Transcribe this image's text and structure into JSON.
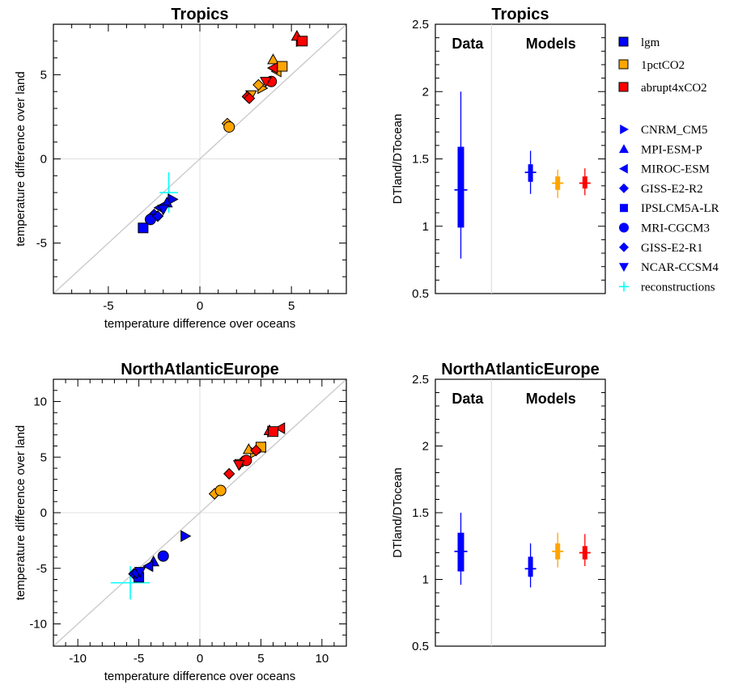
{
  "legend": {
    "experiments": [
      {
        "label": "lgm",
        "color": "#0000ff"
      },
      {
        "label": "1pctCO2",
        "color": "#ffa500"
      },
      {
        "label": "abrupt4xCO2",
        "color": "#ff0000"
      }
    ],
    "models": [
      {
        "label": "CNRM_CM5",
        "marker": "tri-right"
      },
      {
        "label": "MPI-ESM-P",
        "marker": "tri-up"
      },
      {
        "label": "MIROC-ESM",
        "marker": "tri-left"
      },
      {
        "label": "GISS-E2-R2",
        "marker": "diamond"
      },
      {
        "label": "IPSLCM5A-LR",
        "marker": "square"
      },
      {
        "label": "MRI-CGCM3",
        "marker": "circle"
      },
      {
        "label": "GISS-E2-R1",
        "marker": "diamond"
      },
      {
        "label": "NCAR-CCSM4",
        "marker": "tri-down"
      }
    ],
    "reconstructions": {
      "label": "reconstructions",
      "color": "#00ffff"
    }
  },
  "chart_data": [
    {
      "type": "scatter",
      "title": "Tropics",
      "xlabel": "temperature difference over oceans",
      "ylabel": "temperature difference over land",
      "xlim": [
        -8,
        8
      ],
      "ylim": [
        -8,
        8
      ],
      "xticks": [
        "-5",
        "0",
        "5"
      ],
      "yticks": [
        "-5",
        "0",
        "5"
      ],
      "reference_line": "1:1",
      "series": [
        {
          "name": "lgm",
          "color": "#0000ff",
          "points": [
            {
              "model": "CNRM_CM5",
              "x": -1.5,
              "y": -2.4
            },
            {
              "model": "MPI-ESM-P",
              "x": -1.8,
              "y": -2.6
            },
            {
              "model": "MIROC-ESM",
              "x": -2.2,
              "y": -2.9
            },
            {
              "model": "GISS-E2-R2",
              "x": -2.5,
              "y": -3.3
            },
            {
              "model": "IPSLCM5A-LR",
              "x": -3.1,
              "y": -4.1
            },
            {
              "model": "MRI-CGCM3",
              "x": -2.7,
              "y": -3.6
            },
            {
              "model": "GISS-E2-R1",
              "x": -2.3,
              "y": -3.4
            },
            {
              "model": "NCAR-CCSM4",
              "x": -2.0,
              "y": -3.0
            }
          ]
        },
        {
          "name": "1pctCO2",
          "color": "#ffa500",
          "points": [
            {
              "model": "CNRM_CM5",
              "x": 3.4,
              "y": 4.2
            },
            {
              "model": "MPI-ESM-P",
              "x": 4.0,
              "y": 5.9
            },
            {
              "model": "MIROC-ESM",
              "x": 4.2,
              "y": 5.2
            },
            {
              "model": "GISS-E2-R2",
              "x": 1.5,
              "y": 2.1
            },
            {
              "model": "IPSLCM5A-LR",
              "x": 4.5,
              "y": 5.5
            },
            {
              "model": "MRI-CGCM3",
              "x": 1.6,
              "y": 1.9
            },
            {
              "model": "GISS-E2-R1",
              "x": 3.2,
              "y": 4.4
            },
            {
              "model": "NCAR-CCSM4",
              "x": 2.8,
              "y": 3.8
            }
          ]
        },
        {
          "name": "abrupt4xCO2",
          "color": "#ff0000",
          "points": [
            {
              "model": "CNRM_CM5",
              "x": 5.5,
              "y": 7.0
            },
            {
              "model": "MPI-ESM-P",
              "x": 5.3,
              "y": 7.3
            },
            {
              "model": "MIROC-ESM",
              "x": 4.0,
              "y": 5.4
            },
            {
              "model": "GISS-E2-R2",
              "x": 2.6,
              "y": 3.7
            },
            {
              "model": "IPSLCM5A-LR",
              "x": 5.6,
              "y": 7.0
            },
            {
              "model": "MRI-CGCM3",
              "x": 3.9,
              "y": 4.6
            },
            {
              "model": "GISS-E2-R1",
              "x": 2.7,
              "y": 3.6
            },
            {
              "model": "NCAR-CCSM4",
              "x": 3.6,
              "y": 4.6
            }
          ]
        }
      ],
      "reconstructions": {
        "x": -1.7,
        "y": -2.0,
        "x_range": [
          -2.2,
          -1.2
        ],
        "y_range": [
          -3.2,
          -0.8
        ]
      }
    },
    {
      "type": "box",
      "title": "Tropics",
      "ylabel": "DTland/DTocean",
      "ylim": [
        0.5,
        2.5
      ],
      "yticks": [
        "0.5",
        "1",
        "1.5",
        "2",
        "2.5"
      ],
      "groups": [
        "Data",
        "Models"
      ],
      "boxes": [
        {
          "group": "Data",
          "color": "#0000ff",
          "whisker": [
            0.76,
            2.0
          ],
          "box": [
            0.99,
            1.59
          ],
          "median": 1.27
        },
        {
          "group": "Models",
          "series": "lgm",
          "color": "#0000ff",
          "whisker": [
            1.24,
            1.56
          ],
          "box": [
            1.33,
            1.46
          ],
          "median": 1.4
        },
        {
          "group": "Models",
          "series": "1pctCO2",
          "color": "#ffa500",
          "whisker": [
            1.21,
            1.42
          ],
          "box": [
            1.27,
            1.37
          ],
          "median": 1.32
        },
        {
          "group": "Models",
          "series": "abrupt4xCO2",
          "color": "#ff0000",
          "whisker": [
            1.23,
            1.43
          ],
          "box": [
            1.28,
            1.37
          ],
          "median": 1.32
        }
      ]
    },
    {
      "type": "scatter",
      "title": "NorthAtlanticEurope",
      "xlabel": "temperature difference over oceans",
      "ylabel": "temperature difference over land",
      "xlim": [
        -12,
        12
      ],
      "ylim": [
        -12,
        12
      ],
      "xticks": [
        "-10",
        "-5",
        "0",
        "5",
        "10"
      ],
      "yticks": [
        "-10",
        "-5",
        "0",
        "5",
        "10"
      ],
      "reference_line": "1:1",
      "series": [
        {
          "name": "lgm",
          "color": "#0000ff",
          "points": [
            {
              "model": "CNRM_CM5",
              "x": -1.2,
              "y": -2.1
            },
            {
              "model": "MPI-ESM-P",
              "x": -3.8,
              "y": -4.4
            },
            {
              "model": "MIROC-ESM",
              "x": -4.2,
              "y": -4.8
            },
            {
              "model": "GISS-E2-R2",
              "x": -5.4,
              "y": -5.5
            },
            {
              "model": "IPSLCM5A-LR",
              "x": -5.0,
              "y": -5.8
            },
            {
              "model": "MRI-CGCM3",
              "x": -3.0,
              "y": -3.9
            },
            {
              "model": "GISS-E2-R1",
              "x": -5.2,
              "y": -5.4
            },
            {
              "model": "NCAR-CCSM4",
              "x": -4.9,
              "y": -5.3
            }
          ]
        },
        {
          "name": "1pctCO2",
          "color": "#ffa500",
          "points": [
            {
              "model": "CNRM_CM5",
              "x": 4.5,
              "y": 5.4
            },
            {
              "model": "MPI-ESM-P",
              "x": 4.0,
              "y": 5.7
            },
            {
              "model": "MIROC-ESM",
              "x": 5.0,
              "y": 5.9
            },
            {
              "model": "GISS-E2-R2",
              "x": 1.2,
              "y": 1.7
            },
            {
              "model": "IPSLCM5A-LR",
              "x": 5.0,
              "y": 5.9
            },
            {
              "model": "MRI-CGCM3",
              "x": 1.7,
              "y": 2.0
            },
            {
              "model": "GISS-E2-R1",
              "x": 3.5,
              "y": 4.6
            },
            {
              "model": "NCAR-CCSM4",
              "x": 3.3,
              "y": 4.4
            }
          ]
        },
        {
          "name": "abrupt4xCO2",
          "color": "#ff0000",
          "points": [
            {
              "model": "CNRM_CM5",
              "x": 5.9,
              "y": 7.3
            },
            {
              "model": "MPI-ESM-P",
              "x": 5.7,
              "y": 7.4
            },
            {
              "model": "MIROC-ESM",
              "x": 6.6,
              "y": 7.6
            },
            {
              "model": "GISS-E2-R2",
              "x": 2.4,
              "y": 3.5
            },
            {
              "model": "IPSLCM5A-LR",
              "x": 6.0,
              "y": 7.3
            },
            {
              "model": "MRI-CGCM3",
              "x": 3.8,
              "y": 4.7
            },
            {
              "model": "GISS-E2-R1",
              "x": 4.6,
              "y": 5.6
            },
            {
              "model": "NCAR-CCSM4",
              "x": 3.2,
              "y": 4.3
            }
          ]
        }
      ],
      "reconstructions": {
        "x": -5.7,
        "y": -6.3,
        "x_range": [
          -7.3,
          -4.1
        ],
        "y_range": [
          -7.8,
          -4.8
        ]
      }
    },
    {
      "type": "box",
      "title": "NorthAtlanticEurope",
      "ylabel": "DTland/DTocean",
      "ylim": [
        0.5,
        2.5
      ],
      "yticks": [
        "0.5",
        "1",
        "1.5",
        "2",
        "2.5"
      ],
      "groups": [
        "Data",
        "Models"
      ],
      "boxes": [
        {
          "group": "Data",
          "color": "#0000ff",
          "whisker": [
            0.96,
            1.5
          ],
          "box": [
            1.06,
            1.35
          ],
          "median": 1.21
        },
        {
          "group": "Models",
          "series": "lgm",
          "color": "#0000ff",
          "whisker": [
            0.94,
            1.27
          ],
          "box": [
            1.02,
            1.17
          ],
          "median": 1.08
        },
        {
          "group": "Models",
          "series": "1pctCO2",
          "color": "#ffa500",
          "whisker": [
            1.09,
            1.35
          ],
          "box": [
            1.15,
            1.27
          ],
          "median": 1.21
        },
        {
          "group": "Models",
          "series": "abrupt4xCO2",
          "color": "#ff0000",
          "whisker": [
            1.1,
            1.34
          ],
          "box": [
            1.15,
            1.25
          ],
          "median": 1.2
        }
      ]
    }
  ]
}
